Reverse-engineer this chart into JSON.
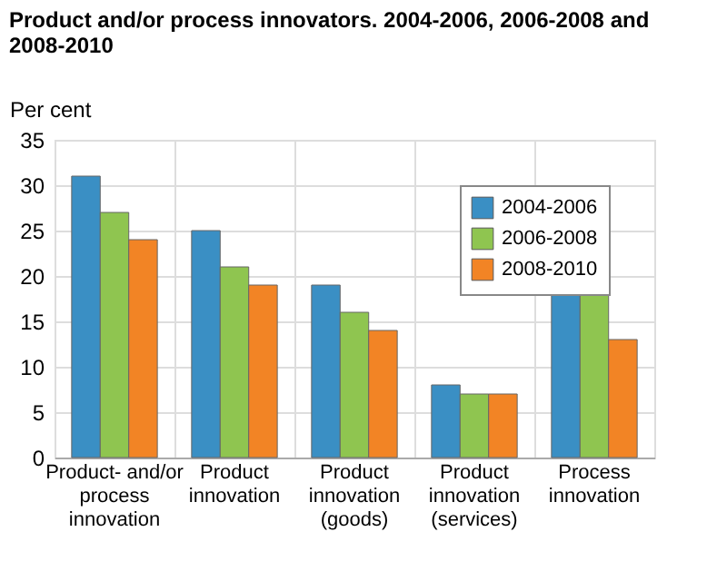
{
  "chart_data": {
    "type": "bar",
    "title": "Product and/or process innovators. 2004-2006, 2006-2008 and 2008-2010",
    "ylabel": "Per cent",
    "categories": [
      "Product- and/or process innovation",
      "Product innovation",
      "Product innovation (goods)",
      "Product innovation (services)",
      "Process innovation"
    ],
    "series": [
      {
        "name": "2004-2006",
        "color": "#3a8fc4",
        "values": [
          31,
          25,
          19,
          8,
          18
        ]
      },
      {
        "name": "2006-2008",
        "color": "#8fc550",
        "values": [
          27,
          21,
          16,
          7,
          18
        ]
      },
      {
        "name": "2008-2010",
        "color": "#f28425",
        "values": [
          24,
          19,
          14,
          7,
          13
        ]
      }
    ],
    "ylim": [
      0,
      35
    ],
    "yticks": [
      0,
      5,
      10,
      15,
      20,
      25,
      30,
      35
    ],
    "grid": true,
    "legend": "top right"
  }
}
